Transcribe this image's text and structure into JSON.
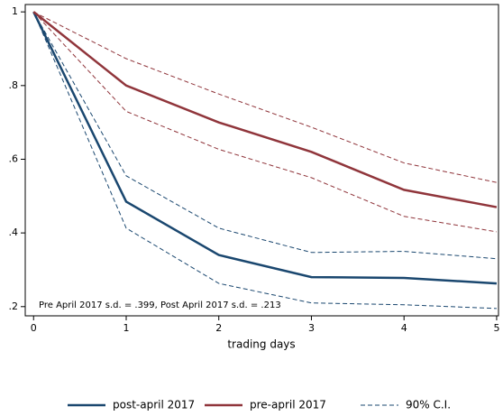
{
  "chart_data": {
    "type": "line",
    "x": [
      0,
      1,
      2,
      3,
      4,
      5
    ],
    "x_label": "trading days",
    "annotation": "Pre April 2017 s.d. = .399,  Post April 2017 s.d. = .213",
    "ci_label": "90% C.I.",
    "series": [
      {
        "name": "post-april 2017",
        "color": "#1a476f",
        "values": [
          1,
          0.485,
          0.34,
          0.28,
          0.278,
          0.263
        ],
        "ci_upper": [
          1,
          0.555,
          0.413,
          0.347,
          0.35,
          0.33
        ],
        "ci_lower": [
          1,
          0.413,
          0.263,
          0.21,
          0.205,
          0.195
        ]
      },
      {
        "name": "pre-april 2017",
        "color": "#90353b",
        "values": [
          1,
          0.8,
          0.7,
          0.62,
          0.517,
          0.47
        ],
        "ci_upper": [
          1,
          0.873,
          0.777,
          0.687,
          0.59,
          0.537
        ],
        "ci_lower": [
          1,
          0.73,
          0.627,
          0.55,
          0.445,
          0.403
        ]
      }
    ],
    "xlim": [
      -0.09,
      5.02
    ],
    "xticks": [
      0,
      1,
      2,
      3,
      4,
      5
    ],
    "ylim": [
      0.175,
      1.02
    ],
    "yticks": [
      {
        "value": 0.2,
        "label": ".2"
      },
      {
        "value": 0.4,
        "label": ".4"
      },
      {
        "value": 0.6,
        "label": ".6"
      },
      {
        "value": 0.8,
        "label": ".8"
      },
      1
    ],
    "legend": "bottom"
  }
}
